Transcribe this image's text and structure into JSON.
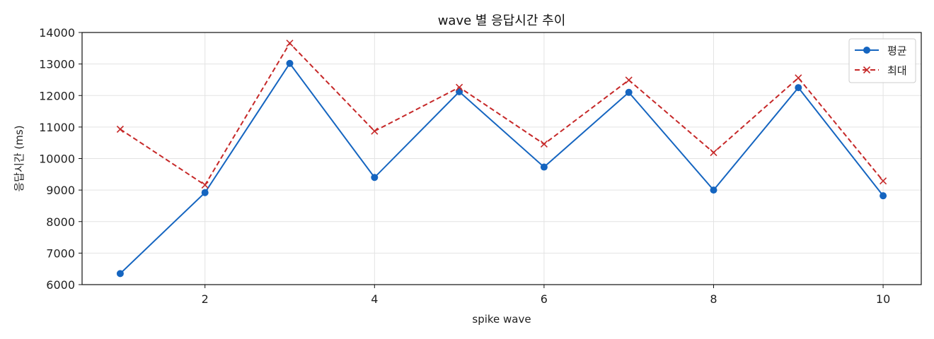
{
  "chart_data": {
    "type": "line",
    "title": "wave 별 응답시간 추이",
    "xlabel": "spike wave",
    "ylabel": "응답시간 (ms)",
    "x": [
      1,
      2,
      3,
      4,
      5,
      6,
      7,
      8,
      9,
      10
    ],
    "xticks": [
      2,
      4,
      6,
      8,
      10
    ],
    "yticks": [
      6000,
      7000,
      8000,
      9000,
      10000,
      11000,
      12000,
      13000,
      14000
    ],
    "xlim": [
      0.55,
      10.45
    ],
    "ylim": [
      6000,
      14000
    ],
    "grid": true,
    "legend_position": "top-right",
    "series": [
      {
        "name": "평균",
        "color": "#1565c0",
        "marker": "circle",
        "line_style": "solid",
        "values": [
          6350,
          8920,
          13020,
          9400,
          12120,
          9730,
          12100,
          9000,
          12250,
          8820
        ]
      },
      {
        "name": "최대",
        "color": "#c62828",
        "marker": "x",
        "line_style": "dashed",
        "values": [
          10930,
          9160,
          13660,
          10870,
          12260,
          10460,
          12490,
          10190,
          12560,
          9290
        ]
      }
    ]
  }
}
